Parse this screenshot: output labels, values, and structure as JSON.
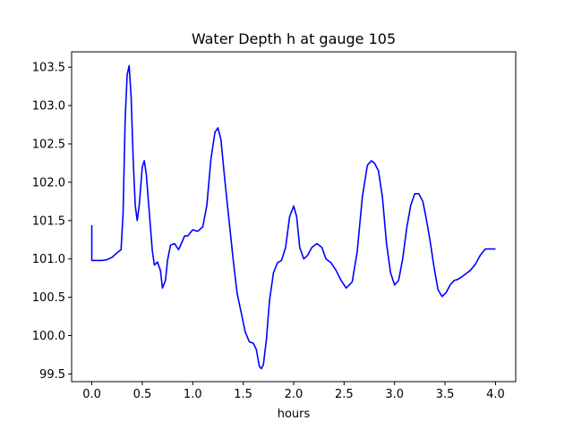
{
  "chart_data": {
    "type": "line",
    "title": "Water Depth h at gauge 105",
    "xlabel": "hours",
    "ylabel": "",
    "xlim": [
      -0.2,
      4.2
    ],
    "ylim": [
      99.4,
      103.7
    ],
    "xticks": [
      "0.0",
      "0.5",
      "1.0",
      "1.5",
      "2.0",
      "2.5",
      "3.0",
      "3.5",
      "4.0"
    ],
    "yticks": [
      "99.5",
      "100.0",
      "100.5",
      "101.0",
      "101.5",
      "102.0",
      "102.5",
      "103.0",
      "103.5"
    ],
    "grid": false,
    "legend": "none",
    "series": [
      {
        "color": "#0000ff",
        "x": [
          0.0,
          0.0,
          0.05,
          0.1,
          0.15,
          0.2,
          0.25,
          0.29,
          0.31,
          0.33,
          0.35,
          0.37,
          0.39,
          0.41,
          0.43,
          0.45,
          0.47,
          0.5,
          0.52,
          0.54,
          0.57,
          0.6,
          0.62,
          0.65,
          0.68,
          0.7,
          0.73,
          0.75,
          0.78,
          0.82,
          0.86,
          0.88,
          0.92,
          0.95,
          1.0,
          1.05,
          1.1,
          1.14,
          1.18,
          1.22,
          1.25,
          1.28,
          1.32,
          1.36,
          1.4,
          1.44,
          1.48,
          1.52,
          1.56,
          1.6,
          1.63,
          1.66,
          1.68,
          1.7,
          1.73,
          1.76,
          1.8,
          1.84,
          1.88,
          1.92,
          1.96,
          2.0,
          2.03,
          2.06,
          2.1,
          2.14,
          2.18,
          2.23,
          2.28,
          2.32,
          2.37,
          2.42,
          2.47,
          2.52,
          2.58,
          2.63,
          2.68,
          2.73,
          2.77,
          2.8,
          2.84,
          2.88,
          2.92,
          2.96,
          3.0,
          3.04,
          3.08,
          3.12,
          3.16,
          3.2,
          3.24,
          3.28,
          3.31,
          3.35,
          3.39,
          3.43,
          3.47,
          3.51,
          3.55,
          3.59,
          3.62,
          3.66,
          3.7,
          3.75,
          3.8,
          3.85,
          3.9,
          3.94,
          3.97,
          4.0
        ],
        "y": [
          101.44,
          100.98,
          100.98,
          100.98,
          100.99,
          101.02,
          101.08,
          101.12,
          101.6,
          102.8,
          103.4,
          103.52,
          103.1,
          102.3,
          101.7,
          101.5,
          101.7,
          102.2,
          102.28,
          102.1,
          101.6,
          101.1,
          100.92,
          100.96,
          100.85,
          100.62,
          100.72,
          100.98,
          101.18,
          101.2,
          101.12,
          101.18,
          101.3,
          101.3,
          101.38,
          101.36,
          101.42,
          101.7,
          102.3,
          102.65,
          102.71,
          102.55,
          102.0,
          101.5,
          101.0,
          100.55,
          100.3,
          100.05,
          99.92,
          99.9,
          99.82,
          99.6,
          99.57,
          99.62,
          99.95,
          100.45,
          100.82,
          100.95,
          100.98,
          101.15,
          101.55,
          101.69,
          101.55,
          101.15,
          101.0,
          101.05,
          101.15,
          101.2,
          101.15,
          101.0,
          100.95,
          100.85,
          100.72,
          100.62,
          100.7,
          101.1,
          101.8,
          102.22,
          102.28,
          102.25,
          102.15,
          101.8,
          101.2,
          100.82,
          100.66,
          100.72,
          101.0,
          101.4,
          101.7,
          101.85,
          101.85,
          101.75,
          101.55,
          101.25,
          100.9,
          100.6,
          100.51,
          100.56,
          100.66,
          100.72,
          100.73,
          100.76,
          100.8,
          100.85,
          100.93,
          101.05,
          101.13,
          101.13,
          101.13,
          101.13
        ]
      }
    ]
  }
}
